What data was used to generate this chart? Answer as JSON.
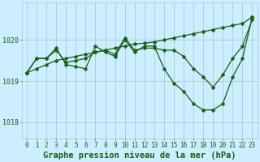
{
  "background_color": "#cceeff",
  "grid_color": "#aacccc",
  "line_color": "#1a5c1a",
  "xlabel": "Graphe pression niveau de la mer (hPa)",
  "xlabel_fontsize": 7.5,
  "xlim": [
    -0.5,
    23.5
  ],
  "ylim": [
    1017.6,
    1020.9
  ],
  "yticks": [
    1018,
    1019,
    1020
  ],
  "xticks": [
    0,
    1,
    2,
    3,
    4,
    5,
    6,
    7,
    8,
    9,
    10,
    11,
    12,
    13,
    14,
    15,
    16,
    17,
    18,
    19,
    20,
    21,
    22,
    23
  ],
  "series1_x": [
    0,
    1,
    2,
    3,
    4,
    5,
    6,
    7,
    8,
    9,
    10,
    11,
    12,
    13,
    14,
    15,
    16,
    17,
    18,
    19,
    20,
    21,
    22,
    23
  ],
  "series1_y": [
    1019.2,
    1019.3,
    1019.4,
    1019.5,
    1019.55,
    1019.6,
    1019.65,
    1019.7,
    1019.75,
    1019.8,
    1019.85,
    1019.9,
    1019.92,
    1019.95,
    1020.0,
    1020.05,
    1020.1,
    1020.15,
    1020.2,
    1020.25,
    1020.3,
    1020.35,
    1020.4,
    1020.55
  ],
  "series2_x": [
    0,
    1,
    2,
    3,
    4,
    5,
    6,
    7,
    8,
    9,
    10,
    11,
    12,
    13,
    14,
    15,
    16,
    17,
    18,
    19,
    20,
    21,
    22,
    23
  ],
  "series2_y": [
    1019.2,
    1019.55,
    1019.55,
    1019.75,
    1019.45,
    1019.5,
    1019.55,
    1019.7,
    1019.75,
    1019.65,
    1020.05,
    1019.75,
    1019.8,
    1019.8,
    1019.75,
    1019.75,
    1019.6,
    1019.3,
    1019.1,
    1018.85,
    1019.15,
    1019.55,
    1019.85,
    1020.5
  ],
  "series3_x": [
    0,
    1,
    2,
    3,
    4,
    5,
    6,
    7,
    8,
    9,
    10,
    11,
    12,
    13,
    14,
    15,
    16,
    17,
    18,
    19,
    20,
    21,
    22,
    23
  ],
  "series3_y": [
    1019.2,
    1019.55,
    1019.55,
    1019.8,
    1019.4,
    1019.35,
    1019.3,
    1019.85,
    1019.7,
    1019.6,
    1020.0,
    1019.7,
    1019.85,
    1019.85,
    1019.3,
    1018.95,
    1018.75,
    1018.45,
    1018.3,
    1018.3,
    1018.45,
    1019.1,
    1019.55,
    1020.55
  ],
  "tick_fontsize": 5.5,
  "marker_size": 2.5,
  "line_width": 0.9
}
